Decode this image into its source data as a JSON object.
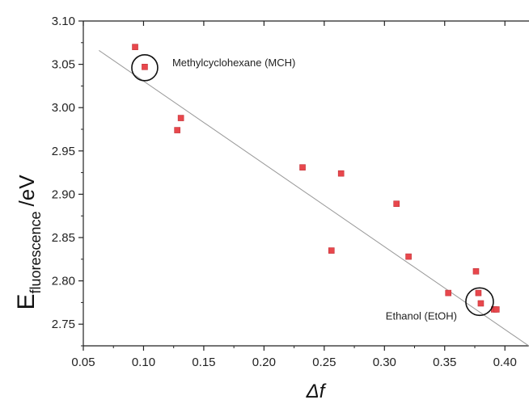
{
  "chart_data": {
    "type": "scatter",
    "title": "",
    "xlabel": "Δf",
    "ylabel_main": "E",
    "ylabel_sub": "fluorescence",
    "ylabel_unit": "/eV",
    "xlim": [
      0.05,
      0.42
    ],
    "ylim": [
      2.725,
      3.1
    ],
    "x_ticks": [
      0.05,
      0.1,
      0.15,
      0.2,
      0.25,
      0.3,
      0.35,
      0.4
    ],
    "x_tick_labels": [
      "0.05",
      "0.10",
      "0.15",
      "0.20",
      "0.25",
      "0.30",
      "0.35",
      "0.40"
    ],
    "y_ticks": [
      2.75,
      2.8,
      2.85,
      2.9,
      2.95,
      3.0,
      3.05,
      3.1
    ],
    "y_tick_labels": [
      "2.75",
      "2.80",
      "2.85",
      "2.90",
      "2.95",
      "3.00",
      "3.05",
      "3.10"
    ],
    "grid": false,
    "marker_color": "#e8474c",
    "fit_line_color": "#999999",
    "series": [
      {
        "points": [
          {
            "x": 0.093,
            "y": 3.07
          },
          {
            "x": 0.101,
            "y": 3.047
          },
          {
            "x": 0.128,
            "y": 2.974
          },
          {
            "x": 0.131,
            "y": 2.988
          },
          {
            "x": 0.232,
            "y": 2.931
          },
          {
            "x": 0.256,
            "y": 2.835
          },
          {
            "x": 0.264,
            "y": 2.924
          },
          {
            "x": 0.31,
            "y": 2.889
          },
          {
            "x": 0.32,
            "y": 2.828
          },
          {
            "x": 0.353,
            "y": 2.786
          },
          {
            "x": 0.376,
            "y": 2.811
          },
          {
            "x": 0.378,
            "y": 2.786
          },
          {
            "x": 0.38,
            "y": 2.774
          },
          {
            "x": 0.391,
            "y": 2.767
          },
          {
            "x": 0.393,
            "y": 2.767
          }
        ]
      }
    ],
    "fit_line": {
      "x": [
        0.063,
        0.425
      ],
      "y": [
        3.066,
        2.72
      ]
    },
    "annotations": [
      {
        "text": "Methylcyclohexane (MCH)",
        "x": 0.101,
        "y": 3.047
      },
      {
        "text": "Ethanol (EtOH)",
        "x": 0.379,
        "y": 2.776
      }
    ]
  }
}
